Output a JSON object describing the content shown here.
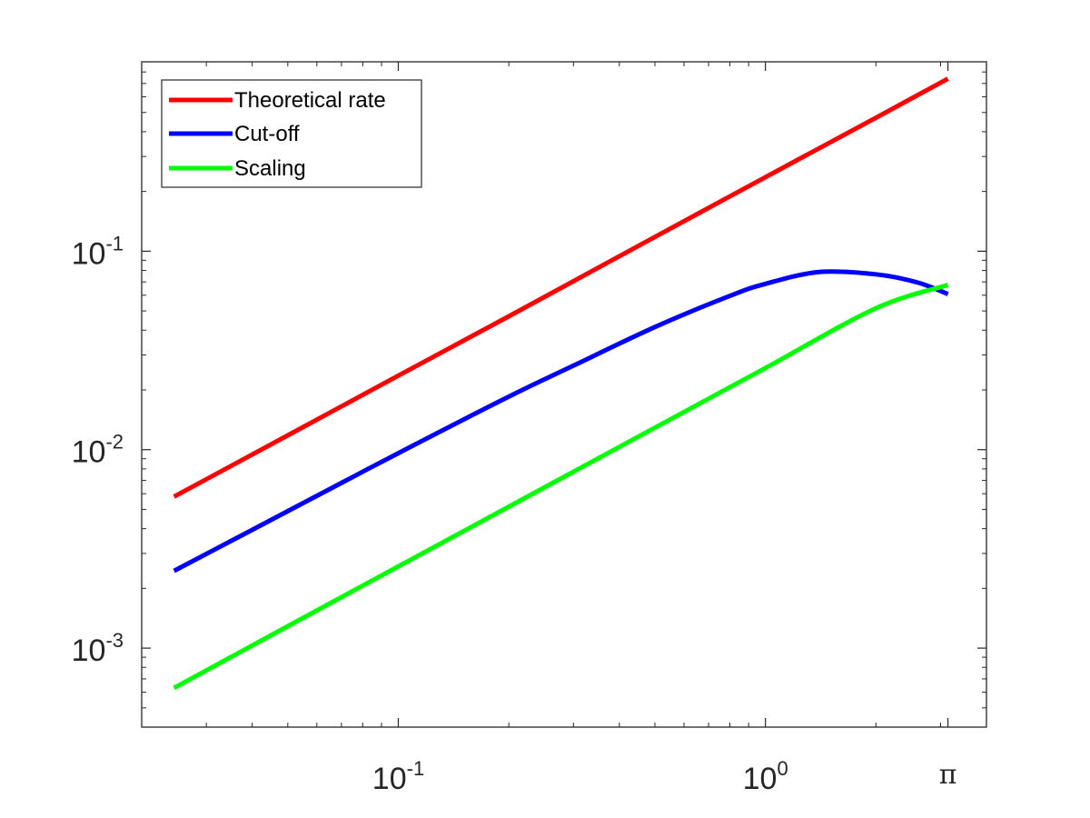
{
  "chart_data": {
    "type": "line",
    "x_scale": "log",
    "y_scale": "log",
    "xlim": [
      0.02,
      4.0
    ],
    "ylim": [
      0.0004,
      0.9
    ],
    "x_ticks": [
      {
        "value": 0.1,
        "base": "10",
        "exp": "-1"
      },
      {
        "value": 1,
        "base": "10",
        "exp": "0"
      },
      {
        "value": 3.14159,
        "symbol": "π"
      }
    ],
    "y_ticks": [
      {
        "value": 0.001,
        "base": "10",
        "exp": "-3"
      },
      {
        "value": 0.01,
        "base": "10",
        "exp": "-2"
      },
      {
        "value": 0.1,
        "base": "10",
        "exp": "-1"
      }
    ],
    "grid": false,
    "legend_position": "top-left",
    "series": [
      {
        "name": "Theoretical rate",
        "color": "#ff0000",
        "x": [
          0.0245,
          0.05,
          0.1,
          0.2,
          0.5,
          1.0,
          2.0,
          3.14159
        ],
        "y": [
          0.0058,
          0.0118,
          0.0236,
          0.047,
          0.118,
          0.236,
          0.47,
          0.74
        ]
      },
      {
        "name": "Cut-off",
        "color": "#0000ff",
        "x": [
          0.0245,
          0.05,
          0.1,
          0.2,
          0.3,
          0.5,
          0.8,
          1.0,
          1.4,
          2.0,
          2.6,
          3.14159
        ],
        "y": [
          0.00245,
          0.0049,
          0.0096,
          0.0185,
          0.0265,
          0.0415,
          0.0595,
          0.0685,
          0.0785,
          0.0765,
          0.0695,
          0.0608
        ]
      },
      {
        "name": "Scaling",
        "color": "#00ff00",
        "x": [
          0.0245,
          0.05,
          0.1,
          0.2,
          0.5,
          1.0,
          2.0,
          3.14159
        ],
        "y": [
          0.00063,
          0.00129,
          0.00258,
          0.00516,
          0.0129,
          0.0258,
          0.0516,
          0.0676
        ]
      }
    ]
  }
}
